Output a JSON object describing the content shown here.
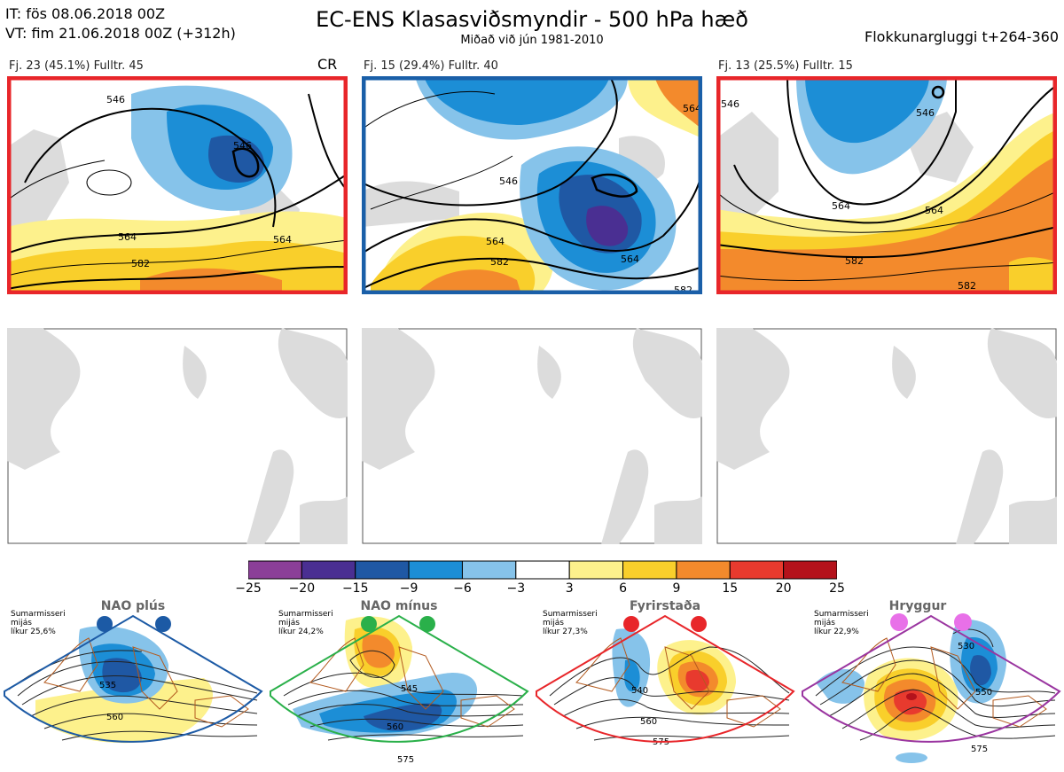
{
  "header": {
    "it_line": "IT: fös 08.06.2018 00Z",
    "vt_line": "VT: fim 21.06.2018 00Z  (+312h)",
    "title": "EC-ENS Klasasviðsmyndir - 500 hPa hæð",
    "subtitle": "Miðað við jún 1981-2010",
    "window": "Flokkunargluggi t+264-360"
  },
  "panels": [
    {
      "label": "Fj. 23 (45.1%)   Fulltr. 45",
      "tag": "CR",
      "frame_color": "#e8262a",
      "contours": [
        "546",
        "546",
        "564",
        "564",
        "582"
      ]
    },
    {
      "label": "Fj. 15 (29.4%)   Fulltr. 40",
      "tag": "",
      "frame_color": "#1a5fa8",
      "contours": [
        "546",
        "564",
        "564",
        "582",
        "582",
        "564"
      ]
    },
    {
      "label": "Fj. 13 (25.5%)   Fulltr. 15",
      "tag": "",
      "frame_color": "#e8262a",
      "contours": [
        "546",
        "546",
        "564",
        "564",
        "582",
        "582"
      ]
    }
  ],
  "colorbar": {
    "ticks": [
      "−25",
      "−20",
      "−15",
      "−9",
      "−6",
      "−3",
      "3",
      "6",
      "9",
      "15",
      "20",
      "25"
    ],
    "colors": [
      "#8b3f98",
      "#4a2f92",
      "#1f58a4",
      "#1c8ed6",
      "#86c3ea",
      "#ffffff",
      "#fdf18c",
      "#f9cf2b",
      "#f38a2c",
      "#e83a2e",
      "#b4121b"
    ]
  },
  "regimes": [
    {
      "name": "NAO plús",
      "note": "Sumarmisseri\nmijás\nlíkur 25,6%",
      "color": "#1c5aa5",
      "contours": [
        "535",
        "560"
      ]
    },
    {
      "name": "NAO mínus",
      "note": "Sumarmisseri\nmijás\nlíkur 24,2%",
      "color": "#2ab04a",
      "contours": [
        "545",
        "560",
        "575"
      ]
    },
    {
      "name": "Fyrirstaða",
      "note": "Sumarmisseri\nmijás\nlíkur 27,3%",
      "color": "#e8262a",
      "contours": [
        "540",
        "560",
        "575"
      ]
    },
    {
      "name": "Hryggur",
      "note": "Sumarmisseri\nmijás\nlíkur 22,9%",
      "color": "#e870e8",
      "contours": [
        "530",
        "550",
        "575"
      ]
    }
  ]
}
